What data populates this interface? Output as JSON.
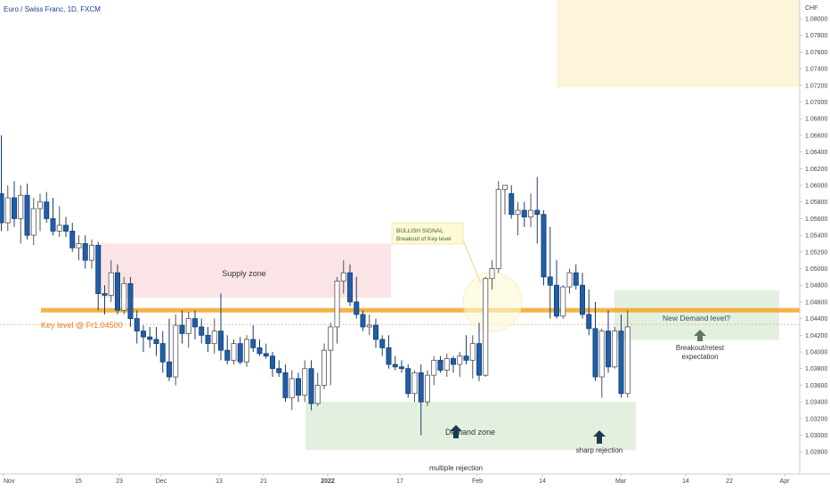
{
  "header": {
    "symbol": "Euro / Swiss Franc, 1D, FXCM"
  },
  "axis": {
    "currency": "CHF"
  },
  "colors": {
    "up_fill": "#ffffff",
    "down_fill": "#1f5ea8",
    "wick": "#222222",
    "key_line": "#f5a623",
    "key_text": "#e67e22",
    "supply_zone": "#fbe4e6",
    "demand_zone": "#e3f0df",
    "new_demand_zone": "#e3f0df",
    "top_zone": "#fdf5d9",
    "signal_box": "#fdf9d6",
    "arrow": "#1d3b4f",
    "arrow_green": "#5a7a5a"
  },
  "annotations": {
    "supply": "Supply zone",
    "demand": "Demand zone",
    "new_demand": "New Demand level?",
    "key_level": "Key level @ Fr1.04500",
    "signal_title": "BULLISH SIGNAL",
    "signal_sub": "Breakout of Key level",
    "breakout_1": "Breakout/retest",
    "breakout_2": "expectation",
    "multiple_rejection": "multiple rejection",
    "sharp_rejection": "sharp rejection"
  },
  "chart_data": {
    "type": "candlestick",
    "title": "Euro / Swiss Franc, 1D, FXCM",
    "ylabel": "CHF",
    "ylim": [
      1.026,
      1.082
    ],
    "y_ticks": [
      "1.08000",
      "1.07800",
      "1.07600",
      "1.07400",
      "1.07200",
      "1.07000",
      "1.06800",
      "1.06600",
      "1.06400",
      "1.06200",
      "1.06000",
      "1.05800",
      "1.05600",
      "1.05400",
      "1.05200",
      "1.05000",
      "1.04800",
      "1.04600",
      "1.04400",
      "1.04200",
      "1.04000",
      "1.03800",
      "1.03600",
      "1.03400",
      "1.03200",
      "1.03000",
      "1.02800"
    ],
    "x_ticks": [
      "Nov",
      "15",
      "23",
      "Dec",
      "13",
      "21",
      "2022",
      "17",
      "Feb",
      "14",
      "Mar",
      "14",
      "22",
      "Apr"
    ],
    "key_level": 1.045,
    "series": [
      {
        "o": 1.059,
        "h": 1.066,
        "l": 1.0545,
        "c": 1.0555
      },
      {
        "o": 1.0555,
        "h": 1.06,
        "l": 1.0545,
        "c": 1.0585
      },
      {
        "o": 1.0585,
        "h": 1.0605,
        "l": 1.055,
        "c": 1.056
      },
      {
        "o": 1.056,
        "h": 1.06,
        "l": 1.053,
        "c": 1.0588
      },
      {
        "o": 1.0588,
        "h": 1.0602,
        "l": 1.0535,
        "c": 1.054
      },
      {
        "o": 1.054,
        "h": 1.0585,
        "l": 1.0528,
        "c": 1.0572
      },
      {
        "o": 1.0572,
        "h": 1.059,
        "l": 1.0545,
        "c": 1.058
      },
      {
        "o": 1.058,
        "h": 1.0592,
        "l": 1.0555,
        "c": 1.056
      },
      {
        "o": 1.056,
        "h": 1.0585,
        "l": 1.054,
        "c": 1.0545
      },
      {
        "o": 1.0545,
        "h": 1.0575,
        "l": 1.0538,
        "c": 1.0552
      },
      {
        "o": 1.0552,
        "h": 1.0562,
        "l": 1.0538,
        "c": 1.0545
      },
      {
        "o": 1.0545,
        "h": 1.0555,
        "l": 1.052,
        "c": 1.0525
      },
      {
        "o": 1.0525,
        "h": 1.054,
        "l": 1.051,
        "c": 1.053
      },
      {
        "o": 1.053,
        "h": 1.054,
        "l": 1.05,
        "c": 1.051
      },
      {
        "o": 1.051,
        "h": 1.0535,
        "l": 1.05,
        "c": 1.0528
      },
      {
        "o": 1.0528,
        "h": 1.0532,
        "l": 1.045,
        "c": 1.047
      },
      {
        "o": 1.047,
        "h": 1.048,
        "l": 1.0445,
        "c": 1.0468
      },
      {
        "o": 1.0468,
        "h": 1.051,
        "l": 1.046,
        "c": 1.0495
      },
      {
        "o": 1.0495,
        "h": 1.0505,
        "l": 1.0445,
        "c": 1.045
      },
      {
        "o": 1.045,
        "h": 1.049,
        "l": 1.0445,
        "c": 1.0482
      },
      {
        "o": 1.0482,
        "h": 1.049,
        "l": 1.043,
        "c": 1.044
      },
      {
        "o": 1.044,
        "h": 1.045,
        "l": 1.041,
        "c": 1.0425
      },
      {
        "o": 1.0425,
        "h": 1.0432,
        "l": 1.04,
        "c": 1.0418
      },
      {
        "o": 1.0418,
        "h": 1.043,
        "l": 1.0405,
        "c": 1.0415
      },
      {
        "o": 1.0415,
        "h": 1.043,
        "l": 1.0395,
        "c": 1.041
      },
      {
        "o": 1.041,
        "h": 1.0425,
        "l": 1.0375,
        "c": 1.0388
      },
      {
        "o": 1.0388,
        "h": 1.044,
        "l": 1.0365,
        "c": 1.037
      },
      {
        "o": 1.037,
        "h": 1.0445,
        "l": 1.036,
        "c": 1.0432
      },
      {
        "o": 1.0432,
        "h": 1.045,
        "l": 1.041,
        "c": 1.0422
      },
      {
        "o": 1.0422,
        "h": 1.0448,
        "l": 1.0405,
        "c": 1.044
      },
      {
        "o": 1.044,
        "h": 1.045,
        "l": 1.0415,
        "c": 1.043
      },
      {
        "o": 1.043,
        "h": 1.044,
        "l": 1.041,
        "c": 1.042
      },
      {
        "o": 1.042,
        "h": 1.043,
        "l": 1.04,
        "c": 1.041
      },
      {
        "o": 1.041,
        "h": 1.044,
        "l": 1.0398,
        "c": 1.0425
      },
      {
        "o": 1.0425,
        "h": 1.047,
        "l": 1.039,
        "c": 1.0402
      },
      {
        "o": 1.0402,
        "h": 1.042,
        "l": 1.0385,
        "c": 1.039
      },
      {
        "o": 1.039,
        "h": 1.0415,
        "l": 1.0385,
        "c": 1.041
      },
      {
        "o": 1.041,
        "h": 1.0418,
        "l": 1.0385,
        "c": 1.0388
      },
      {
        "o": 1.0388,
        "h": 1.042,
        "l": 1.0382,
        "c": 1.0415
      },
      {
        "o": 1.0415,
        "h": 1.0432,
        "l": 1.04,
        "c": 1.0405
      },
      {
        "o": 1.0405,
        "h": 1.0415,
        "l": 1.0395,
        "c": 1.0398
      },
      {
        "o": 1.0398,
        "h": 1.041,
        "l": 1.0392,
        "c": 1.0395
      },
      {
        "o": 1.0395,
        "h": 1.04,
        "l": 1.037,
        "c": 1.038
      },
      {
        "o": 1.038,
        "h": 1.039,
        "l": 1.037,
        "c": 1.0375
      },
      {
        "o": 1.0375,
        "h": 1.0385,
        "l": 1.034,
        "c": 1.0345
      },
      {
        "o": 1.0345,
        "h": 1.0378,
        "l": 1.033,
        "c": 1.0368
      },
      {
        "o": 1.0368,
        "h": 1.0375,
        "l": 1.034,
        "c": 1.0348
      },
      {
        "o": 1.0348,
        "h": 1.039,
        "l": 1.034,
        "c": 1.038
      },
      {
        "o": 1.038,
        "h": 1.039,
        "l": 1.033,
        "c": 1.0338
      },
      {
        "o": 1.0338,
        "h": 1.0375,
        "l": 1.0335,
        "c": 1.036
      },
      {
        "o": 1.036,
        "h": 1.041,
        "l": 1.0355,
        "c": 1.0402
      },
      {
        "o": 1.0402,
        "h": 1.0435,
        "l": 1.036,
        "c": 1.043
      },
      {
        "o": 1.043,
        "h": 1.049,
        "l": 1.041,
        "c": 1.0485
      },
      {
        "o": 1.0485,
        "h": 1.051,
        "l": 1.047,
        "c": 1.0495
      },
      {
        "o": 1.0495,
        "h": 1.0505,
        "l": 1.0455,
        "c": 1.046
      },
      {
        "o": 1.046,
        "h": 1.049,
        "l": 1.044,
        "c": 1.0445
      },
      {
        "o": 1.0445,
        "h": 1.045,
        "l": 1.0425,
        "c": 1.043
      },
      {
        "o": 1.043,
        "h": 1.0445,
        "l": 1.042,
        "c": 1.0432
      },
      {
        "o": 1.0432,
        "h": 1.044,
        "l": 1.0405,
        "c": 1.0415
      },
      {
        "o": 1.0415,
        "h": 1.042,
        "l": 1.0395,
        "c": 1.0405
      },
      {
        "o": 1.0405,
        "h": 1.042,
        "l": 1.038,
        "c": 1.0385
      },
      {
        "o": 1.0385,
        "h": 1.0395,
        "l": 1.0378,
        "c": 1.0382
      },
      {
        "o": 1.0382,
        "h": 1.039,
        "l": 1.0375,
        "c": 1.038
      },
      {
        "o": 1.038,
        "h": 1.0385,
        "l": 1.0345,
        "c": 1.035
      },
      {
        "o": 1.035,
        "h": 1.0378,
        "l": 1.034,
        "c": 1.0375
      },
      {
        "o": 1.0375,
        "h": 1.0385,
        "l": 1.03,
        "c": 1.034
      },
      {
        "o": 1.034,
        "h": 1.0378,
        "l": 1.0335,
        "c": 1.0372
      },
      {
        "o": 1.0372,
        "h": 1.0395,
        "l": 1.036,
        "c": 1.039
      },
      {
        "o": 1.039,
        "h": 1.0395,
        "l": 1.0375,
        "c": 1.0378
      },
      {
        "o": 1.0378,
        "h": 1.0398,
        "l": 1.037,
        "c": 1.0392
      },
      {
        "o": 1.0392,
        "h": 1.0395,
        "l": 1.0375,
        "c": 1.0385
      },
      {
        "o": 1.0385,
        "h": 1.04,
        "l": 1.037,
        "c": 1.0395
      },
      {
        "o": 1.0395,
        "h": 1.042,
        "l": 1.0385,
        "c": 1.039
      },
      {
        "o": 1.039,
        "h": 1.042,
        "l": 1.0368,
        "c": 1.041
      },
      {
        "o": 1.041,
        "h": 1.0435,
        "l": 1.0365,
        "c": 1.0372
      },
      {
        "o": 1.0372,
        "h": 1.049,
        "l": 1.037,
        "c": 1.0488
      },
      {
        "o": 1.0488,
        "h": 1.051,
        "l": 1.0475,
        "c": 1.05
      },
      {
        "o": 1.05,
        "h": 1.0605,
        "l": 1.0495,
        "c": 1.0595
      },
      {
        "o": 1.0595,
        "h": 1.06,
        "l": 1.0565,
        "c": 1.06
      },
      {
        "o": 1.059,
        "h": 1.06,
        "l": 1.056,
        "c": 1.0565
      },
      {
        "o": 1.0565,
        "h": 1.058,
        "l": 1.054,
        "c": 1.057
      },
      {
        "o": 1.057,
        "h": 1.058,
        "l": 1.055,
        "c": 1.0562
      },
      {
        "o": 1.0562,
        "h": 1.059,
        "l": 1.055,
        "c": 1.057
      },
      {
        "o": 1.057,
        "h": 1.061,
        "l": 1.053,
        "c": 1.0565
      },
      {
        "o": 1.0565,
        "h": 1.057,
        "l": 1.048,
        "c": 1.049
      },
      {
        "o": 1.049,
        "h": 1.055,
        "l": 1.044,
        "c": 1.048
      },
      {
        "o": 1.048,
        "h": 1.051,
        "l": 1.044,
        "c": 1.0443
      },
      {
        "o": 1.0443,
        "h": 1.048,
        "l": 1.044,
        "c": 1.0478
      },
      {
        "o": 1.0478,
        "h": 1.05,
        "l": 1.047,
        "c": 1.0495
      },
      {
        "o": 1.0495,
        "h": 1.0505,
        "l": 1.0475,
        "c": 1.048
      },
      {
        "o": 1.048,
        "h": 1.0495,
        "l": 1.044,
        "c": 1.0445
      },
      {
        "o": 1.0445,
        "h": 1.0475,
        "l": 1.042,
        "c": 1.0428
      },
      {
        "o": 1.0428,
        "h": 1.046,
        "l": 1.0365,
        "c": 1.037
      },
      {
        "o": 1.037,
        "h": 1.0428,
        "l": 1.0345,
        "c": 1.0425
      },
      {
        "o": 1.0425,
        "h": 1.045,
        "l": 1.0375,
        "c": 1.0382
      },
      {
        "o": 1.0382,
        "h": 1.043,
        "l": 1.038,
        "c": 1.0425
      },
      {
        "o": 1.0425,
        "h": 1.0445,
        "l": 1.0345,
        "c": 1.035
      },
      {
        "o": 1.035,
        "h": 1.045,
        "l": 1.0345,
        "c": 1.043
      }
    ]
  }
}
